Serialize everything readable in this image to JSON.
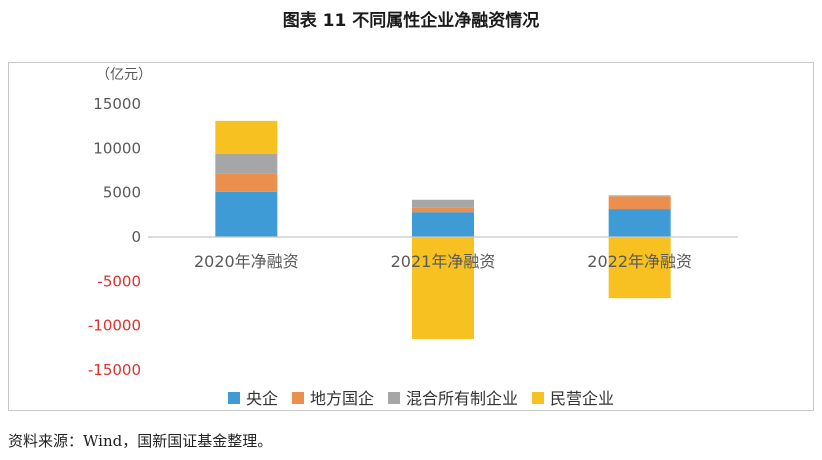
{
  "title": "图表 11  不同属性企业净融资情况",
  "source": "资料来源：Wind，国新国证基金整理。",
  "chart_data": {
    "type": "bar",
    "stacked": true,
    "unit_label": "（亿元）",
    "categories": [
      "2020年净融资",
      "2021年净融资",
      "2022年净融资"
    ],
    "ylim": [
      -15000,
      15000
    ],
    "yticks": [
      15000,
      10000,
      5000,
      0,
      -5000,
      -10000,
      -15000
    ],
    "tick_labels": [
      "15000",
      "10000",
      "5000",
      "0",
      "-5000",
      "-10000",
      "-15000"
    ],
    "grid": false,
    "legend_position": "bottom",
    "series": [
      {
        "name": "央企",
        "color": "#3e9bd6",
        "values": [
          5100,
          2800,
          3150
        ]
      },
      {
        "name": "地方国企",
        "color": "#ea8f4e",
        "values": [
          2100,
          550,
          1450
        ]
      },
      {
        "name": "混合所有制企业",
        "color": "#a6a6a6",
        "values": [
          2200,
          850,
          100
        ]
      },
      {
        "name": "民营企业",
        "color": "#f7c121",
        "values": [
          3700,
          -11500,
          -6900
        ]
      }
    ],
    "colors": {
      "negative_tick": "#e03030",
      "axis": "#c8c8c8",
      "text": "#595959"
    }
  }
}
